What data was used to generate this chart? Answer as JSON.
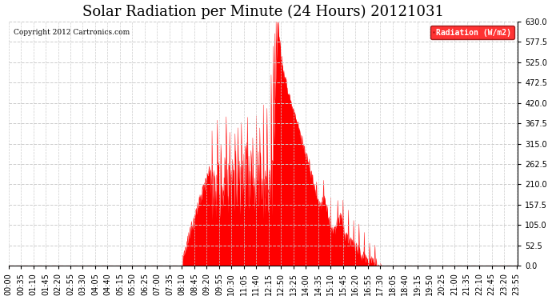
{
  "title": "Solar Radiation per Minute (24 Hours) 20121031",
  "copyright_text": "Copyright 2012 Cartronics.com",
  "legend_label": "Radiation (W/m2)",
  "ylim": [
    0,
    630
  ],
  "yticks": [
    0.0,
    52.5,
    105.0,
    157.5,
    210.0,
    262.5,
    315.0,
    367.5,
    420.0,
    472.5,
    525.0,
    577.5,
    630.0
  ],
  "fill_color": "#ff0000",
  "line_color": "#ff0000",
  "background_color": "#ffffff",
  "title_fontsize": 13,
  "axis_fontsize": 7,
  "total_minutes": 1440,
  "tick_interval": 35
}
